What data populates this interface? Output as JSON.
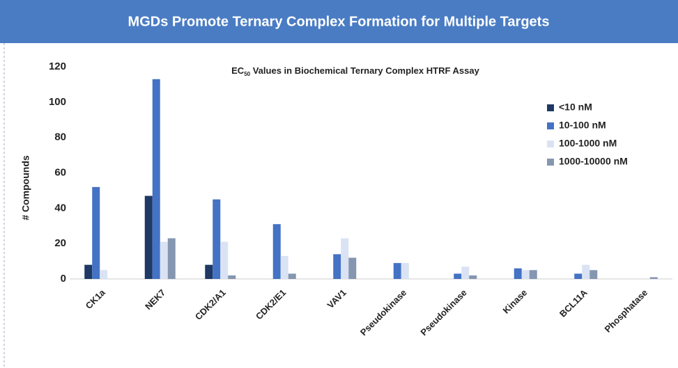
{
  "header": {
    "title": "MGDs Promote Ternary Complex Formation for Multiple Targets"
  },
  "chart_data": {
    "type": "bar",
    "title_parts": [
      "EC",
      "50",
      " Values in Biochemical Ternary Complex HTRF Assay"
    ],
    "y_label": "# Compounds",
    "categories": [
      "CK1a",
      "NEK7",
      "CDK2/A1",
      "CDK2/E1",
      "VAV1",
      "Pseudokinase",
      "Pseudokinase",
      "Kinase",
      "BCL11A",
      "Phosphatase"
    ],
    "series": [
      {
        "name": "<10 nM",
        "color": "#1f3864",
        "values": [
          8,
          47,
          8,
          0,
          0,
          0,
          0,
          0,
          0,
          0
        ]
      },
      {
        "name": "10-100 nM",
        "color": "#4472c4",
        "values": [
          52,
          113,
          45,
          31,
          14,
          9,
          3,
          6,
          3,
          0
        ]
      },
      {
        "name": "100-1000 nM",
        "color": "#dae3f3",
        "values": [
          5,
          21,
          21,
          13,
          23,
          9,
          7,
          5,
          8,
          0
        ]
      },
      {
        "name": "1000-10000 nM",
        "color": "#8496b0",
        "values": [
          0,
          23,
          2,
          3,
          12,
          0,
          2,
          5,
          5,
          1
        ]
      }
    ],
    "ylim": [
      0,
      120
    ],
    "yticks": [
      0,
      20,
      40,
      60,
      80,
      100,
      120
    ],
    "grid": false,
    "legend": "upper right"
  }
}
